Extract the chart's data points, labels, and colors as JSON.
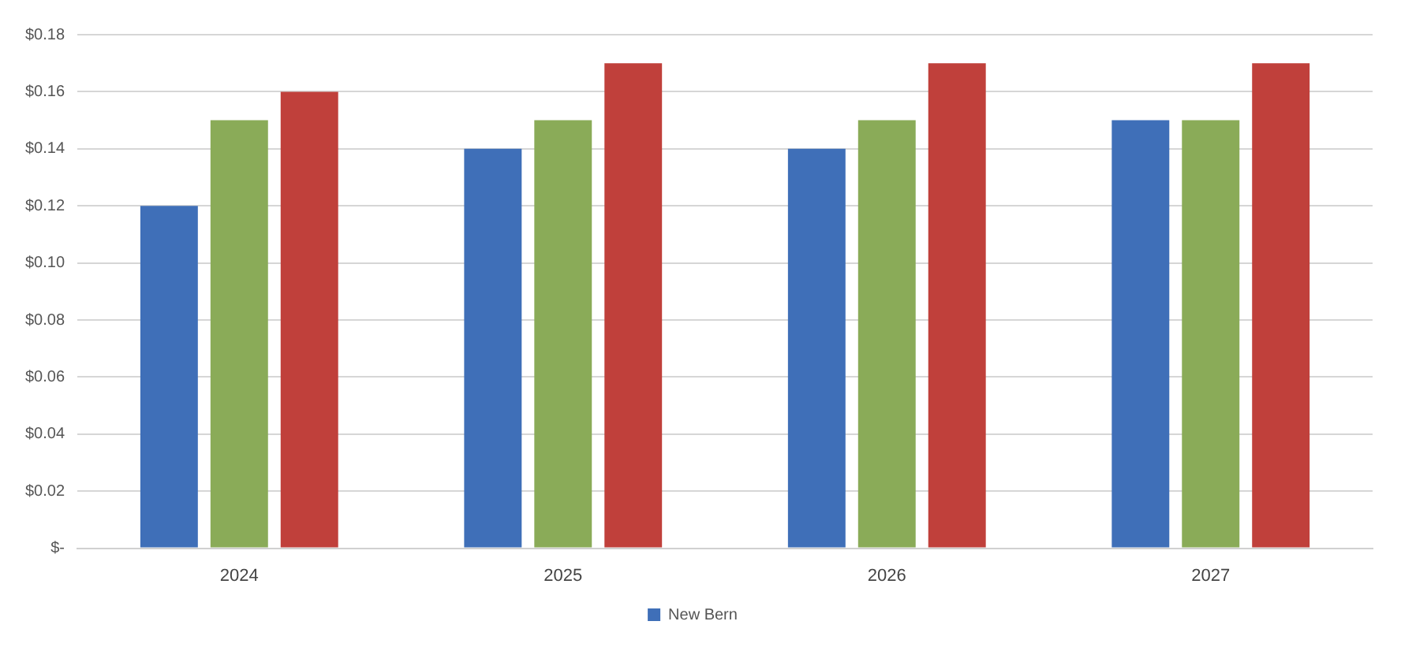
{
  "chart_data": {
    "type": "bar",
    "categories": [
      "2024",
      "2025",
      "2026",
      "2027"
    ],
    "series": [
      {
        "name": "New Bern",
        "color": "#3f6fb8",
        "values": [
          0.12,
          0.14,
          0.14,
          0.15
        ]
      },
      {
        "color": "#8aab58",
        "values": [
          0.15,
          0.15,
          0.15,
          0.15
        ]
      },
      {
        "color": "#c0403b",
        "values": [
          0.16,
          0.17,
          0.17,
          0.17
        ]
      }
    ],
    "ylim": [
      0,
      0.18
    ],
    "yticks": [
      {
        "value": 0,
        "label": "$-"
      },
      {
        "value": 0.02,
        "label": "$0.02"
      },
      {
        "value": 0.04,
        "label": "$0.04"
      },
      {
        "value": 0.06,
        "label": "$0.06"
      },
      {
        "value": 0.08,
        "label": "$0.08"
      },
      {
        "value": 0.1,
        "label": "$0.10"
      },
      {
        "value": 0.12,
        "label": "$0.12"
      },
      {
        "value": 0.14,
        "label": "$0.14"
      },
      {
        "value": 0.16,
        "label": "$0.16"
      },
      {
        "value": 0.18,
        "label": "$0.18"
      }
    ],
    "grid": "y",
    "legend": "bottom"
  }
}
